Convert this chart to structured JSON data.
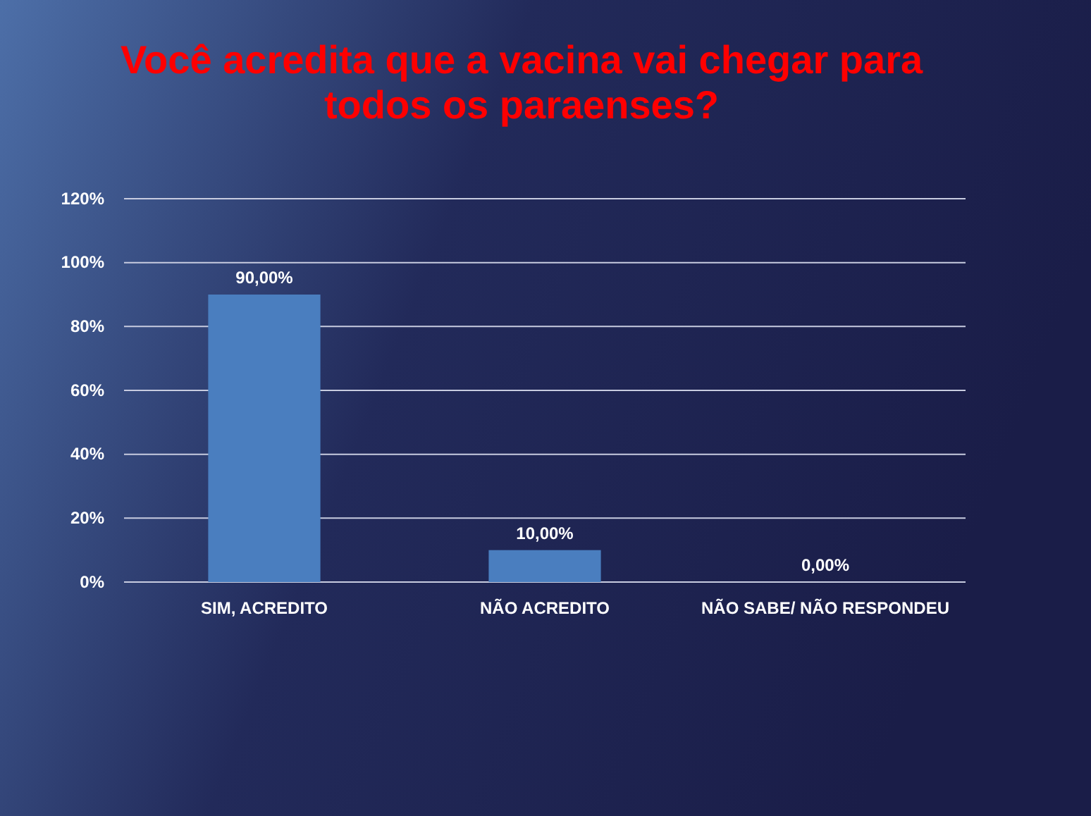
{
  "chart_data": {
    "type": "bar",
    "title": "Você acredita que a vacina vai chegar para todos os paraenses?",
    "categories": [
      "SIM, ACREDITO",
      "NÃO ACREDITO",
      "NÃO SABE/ NÃO RESPONDEU"
    ],
    "values": [
      90,
      10,
      0
    ],
    "value_labels": [
      "90,00%",
      "10,00%",
      "0,00%"
    ],
    "color": "#4a7ebf",
    "ylim": [
      0,
      120
    ],
    "yticks": [
      {
        "value": 0,
        "label": "0%"
      },
      {
        "value": 20,
        "label": "20%"
      },
      {
        "value": 40,
        "label": "40%"
      },
      {
        "value": 60,
        "label": "60%"
      },
      {
        "value": 80,
        "label": "80%"
      },
      {
        "value": 100,
        "label": "100%"
      },
      {
        "value": 120,
        "label": "120%"
      }
    ],
    "grid": "y"
  }
}
